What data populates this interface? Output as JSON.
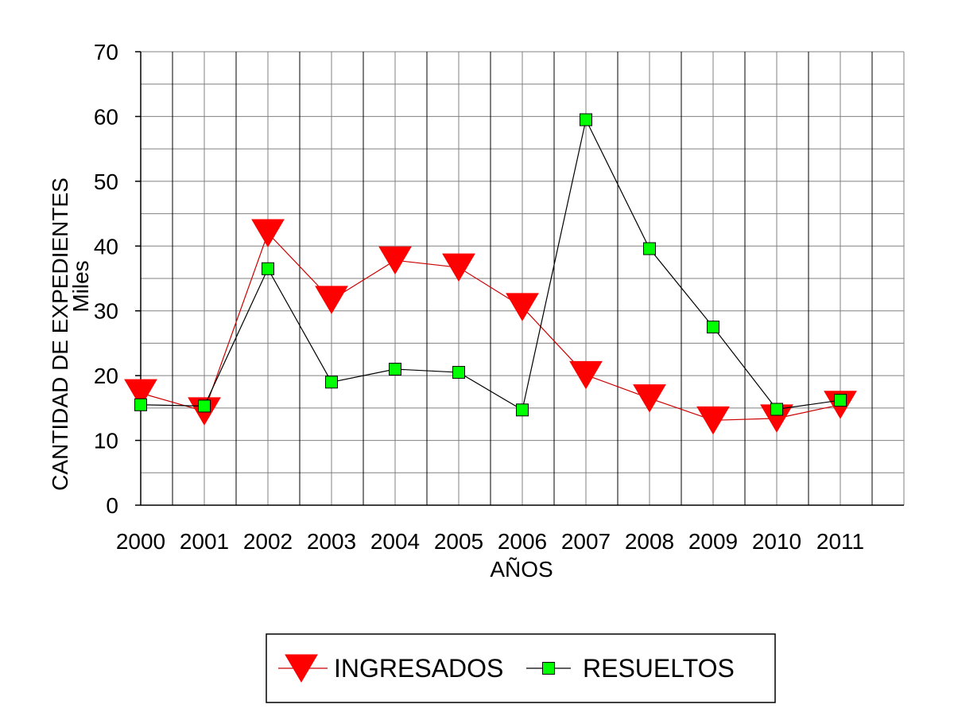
{
  "chart_data": {
    "type": "line",
    "title": "",
    "xlabel": "AÑOS",
    "ylabel": "CANTIDAD DE EXPEDIENTES",
    "yunit": "Miles",
    "categories": [
      "2000",
      "2001",
      "2002",
      "2003",
      "2004",
      "2005",
      "2006",
      "2007",
      "2008",
      "2009",
      "2010",
      "2011"
    ],
    "ylim": [
      0,
      70
    ],
    "yticks": [
      "0",
      "10",
      "20",
      "30",
      "40",
      "50",
      "60",
      "70"
    ],
    "grid": true,
    "legend_position": "bottom",
    "series": [
      {
        "name": "INGRESADOS",
        "marker": "triangle-down",
        "color": "#ff0000",
        "line_color": "#cc0000",
        "values": [
          17.3,
          14.5,
          42.0,
          31.7,
          37.8,
          36.7,
          30.6,
          20.1,
          16.5,
          13.1,
          13.4,
          15.5
        ]
      },
      {
        "name": "RESUELTOS",
        "marker": "square",
        "color": "#00ff00",
        "line_color": "#000000",
        "values": [
          15.5,
          15.3,
          36.5,
          19.0,
          21.0,
          20.5,
          14.7,
          59.5,
          39.6,
          27.5,
          14.8,
          16.2
        ]
      }
    ]
  }
}
